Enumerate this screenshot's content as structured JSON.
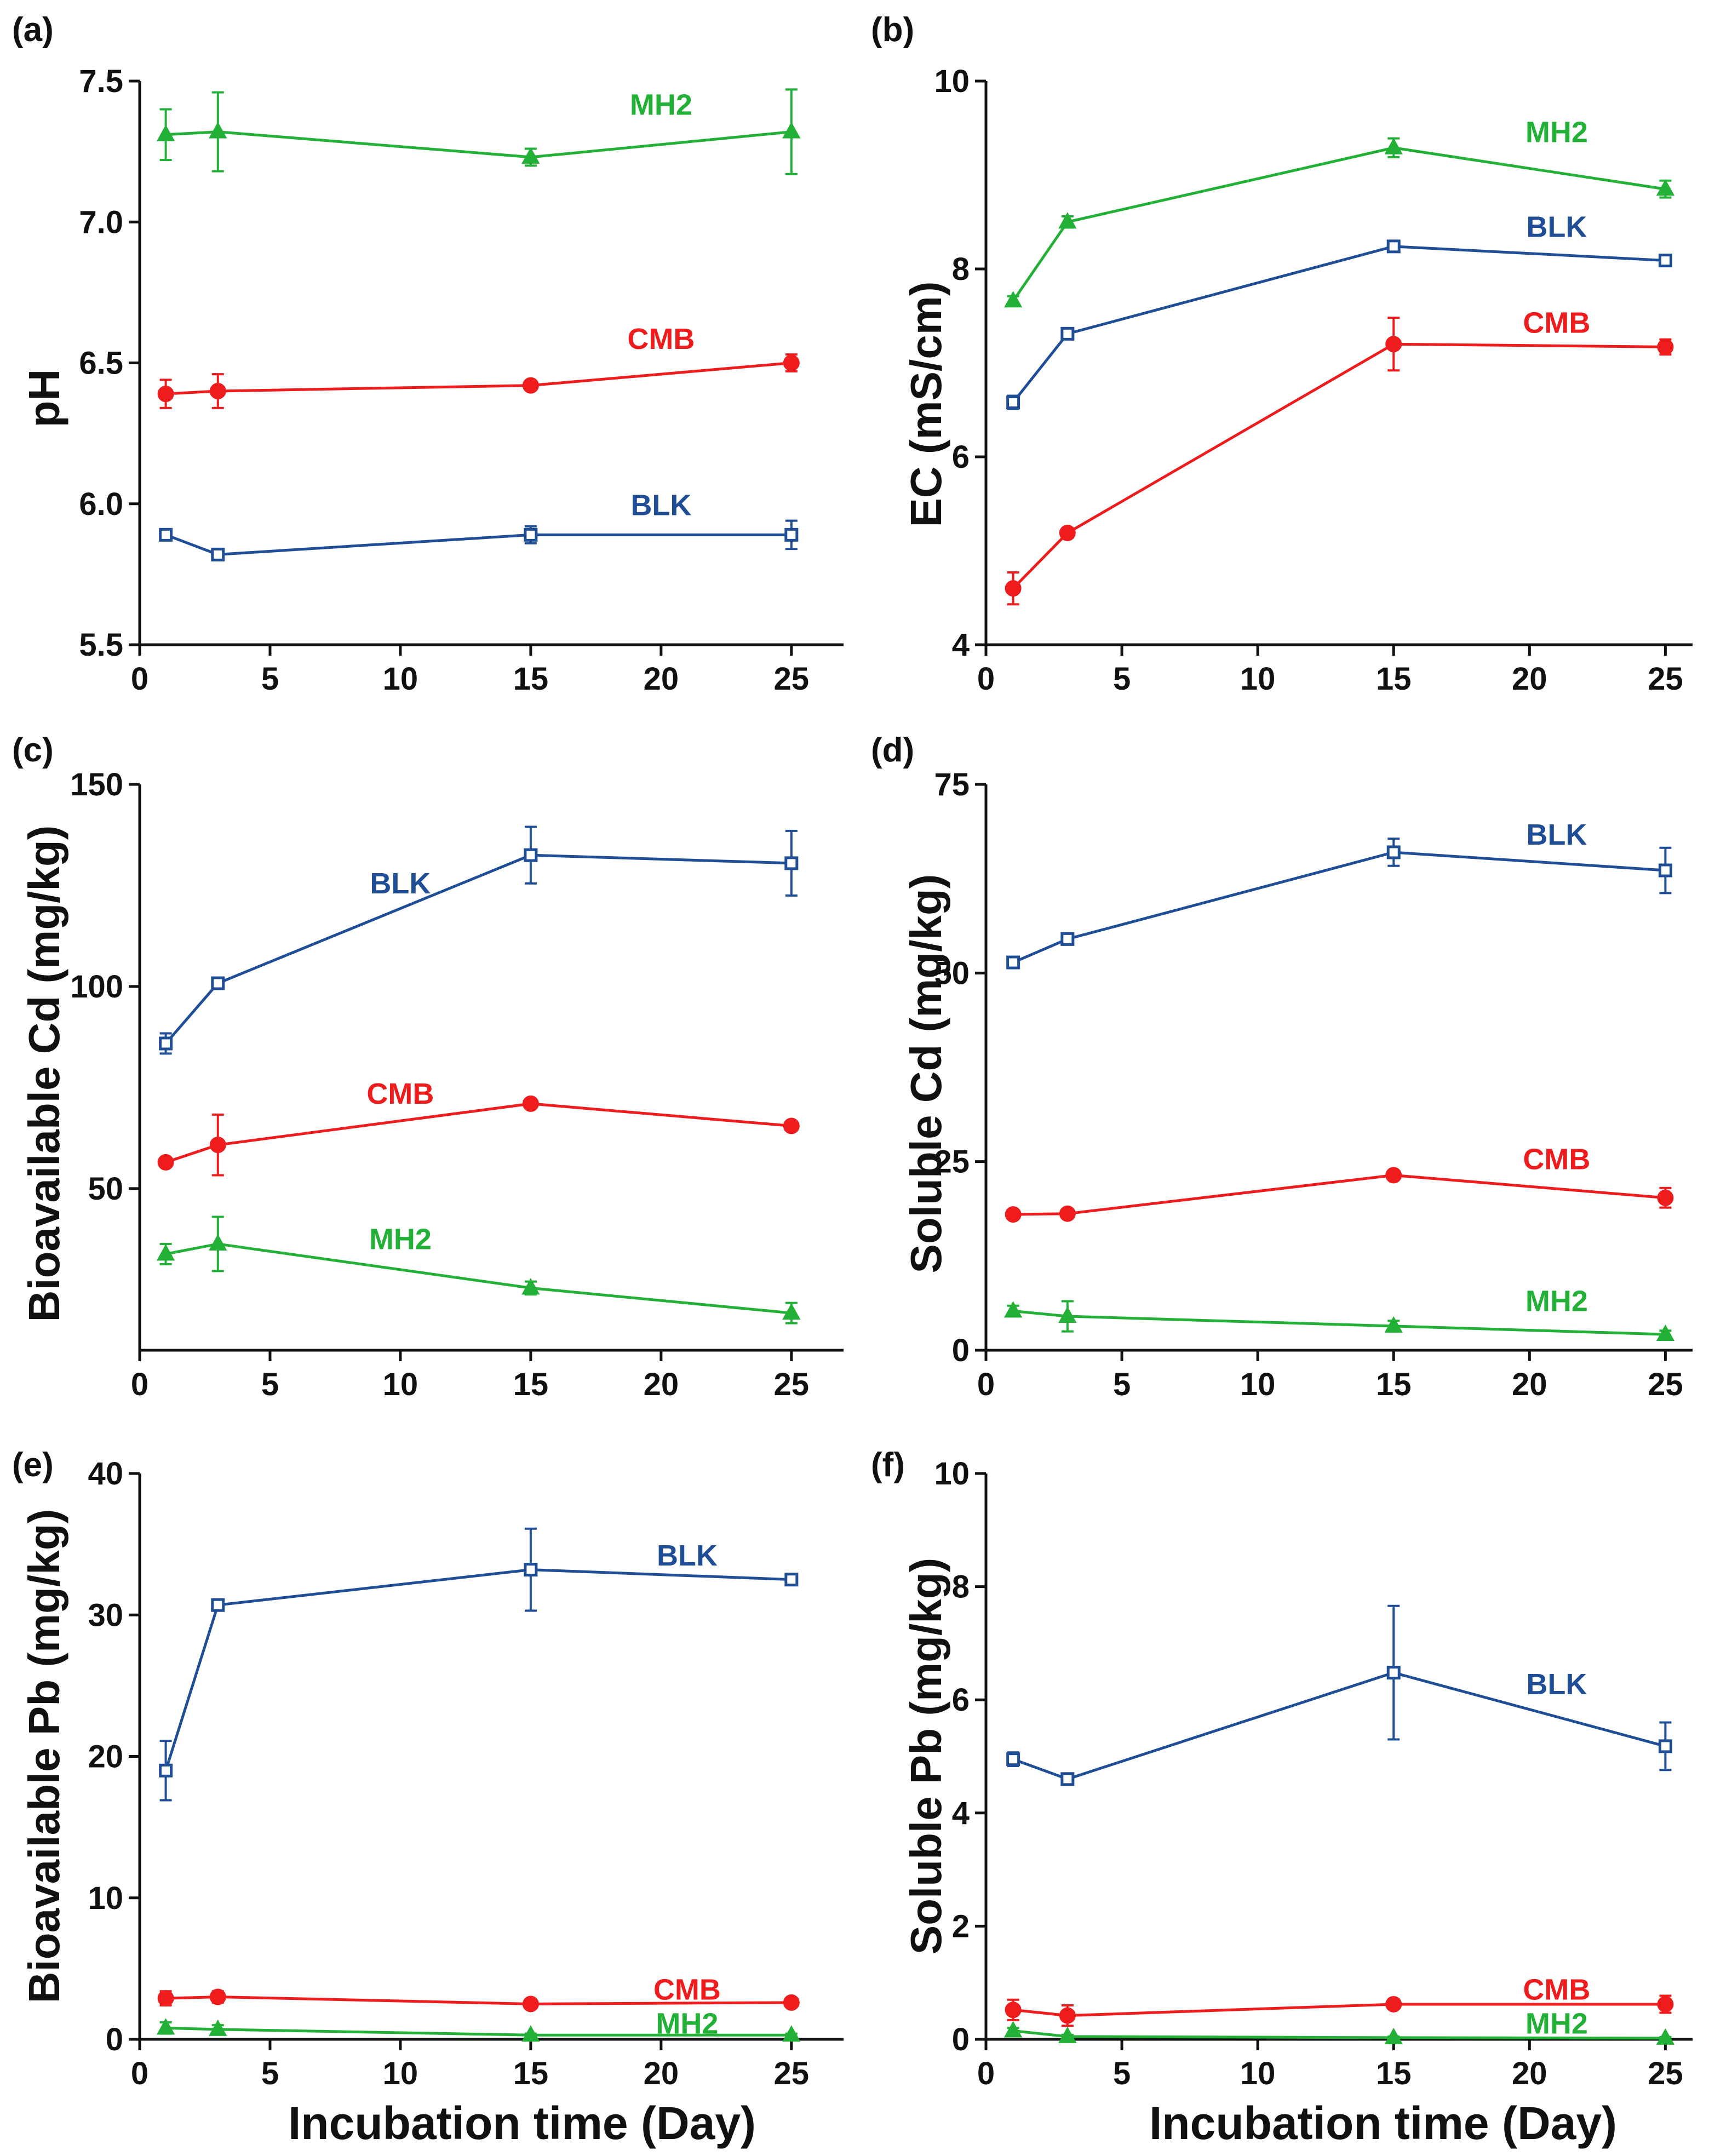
{
  "colors": {
    "BLK": "#1f4e96",
    "CMB": "#ee1c1c",
    "MH2": "#22b136",
    "axis": "#111111"
  },
  "chart_data": [
    {
      "panel": "(a)",
      "type": "line",
      "title": "",
      "ylabel": "pH",
      "xlabel": "",
      "xlim": [
        0,
        27
      ],
      "ylim": [
        5.5,
        7.5
      ],
      "xticks": [
        0,
        5,
        10,
        15,
        20,
        25
      ],
      "yticks": [
        5.5,
        6.0,
        6.5,
        7.0,
        7.5
      ],
      "xtick_labels": [
        "0",
        "5",
        "10",
        "15",
        "20",
        "25"
      ],
      "ytick_labels": [
        "5.5",
        "6.0",
        "6.5",
        "7.0",
        "7.5"
      ],
      "x": [
        1,
        3,
        15,
        25
      ],
      "series": [
        {
          "name": "MH2",
          "values": [
            7.31,
            7.32,
            7.23,
            7.32
          ],
          "errors": [
            0.09,
            0.14,
            0.03,
            0.15
          ],
          "label_at": [
            20,
            7.38
          ]
        },
        {
          "name": "CMB",
          "values": [
            6.39,
            6.4,
            6.42,
            6.5
          ],
          "errors": [
            0.05,
            0.06,
            0.01,
            0.03
          ],
          "label_at": [
            20,
            6.55
          ]
        },
        {
          "name": "BLK",
          "values": [
            5.89,
            5.82,
            5.89,
            5.89
          ],
          "errors": [
            0.01,
            0.01,
            0.03,
            0.05
          ],
          "label_at": [
            20,
            5.96
          ]
        }
      ]
    },
    {
      "panel": "(b)",
      "type": "line",
      "title": "",
      "ylabel": "EC (mS/cm)",
      "xlabel": "",
      "xlim": [
        0,
        26
      ],
      "ylim": [
        4,
        10
      ],
      "xticks": [
        0,
        5,
        10,
        15,
        20,
        25
      ],
      "yticks": [
        4,
        6,
        8,
        10
      ],
      "xtick_labels": [
        "0",
        "5",
        "10",
        "15",
        "20",
        "25"
      ],
      "ytick_labels": [
        "4",
        "6",
        "8",
        "10"
      ],
      "x": [
        1,
        3,
        15,
        25
      ],
      "series": [
        {
          "name": "MH2",
          "values": [
            7.66,
            8.5,
            9.29,
            8.85
          ],
          "errors": [
            0.05,
            0.06,
            0.1,
            0.09
          ],
          "label_at": [
            21,
            9.35
          ]
        },
        {
          "name": "BLK",
          "values": [
            6.58,
            7.31,
            8.24,
            8.09
          ],
          "errors": [
            0.07,
            0.05,
            0.05,
            0.04
          ],
          "label_at": [
            21,
            8.34
          ]
        },
        {
          "name": "CMB",
          "values": [
            4.6,
            5.19,
            7.2,
            7.17
          ],
          "errors": [
            0.17,
            0.05,
            0.28,
            0.08
          ],
          "label_at": [
            21,
            7.32
          ]
        }
      ]
    },
    {
      "panel": "(c)",
      "type": "line",
      "title": "",
      "ylabel": "Bioavailable Cd (mg/kg)",
      "xlabel": "",
      "xlim": [
        0,
        27
      ],
      "ylim": [
        10,
        150
      ],
      "xticks": [
        0,
        5,
        10,
        15,
        20,
        25
      ],
      "yticks": [
        50,
        100,
        150
      ],
      "xtick_labels": [
        "0",
        "5",
        "10",
        "15",
        "20",
        "25"
      ],
      "ytick_labels": [
        "50",
        "100",
        "150"
      ],
      "x": [
        1,
        3,
        15,
        25
      ],
      "series": [
        {
          "name": "BLK",
          "values": [
            85.9,
            100.8,
            132.5,
            130.5
          ],
          "errors": [
            2.5,
            0.8,
            7.0,
            8.0
          ],
          "label_at": [
            10,
            123
          ]
        },
        {
          "name": "CMB",
          "values": [
            56.5,
            60.8,
            71.0,
            65.5
          ],
          "errors": [
            0.8,
            7.5,
            1.0,
            0.8
          ],
          "label_at": [
            10,
            71
          ]
        },
        {
          "name": "MH2",
          "values": [
            33.8,
            36.3,
            25.4,
            19.2
          ],
          "errors": [
            2.5,
            6.7,
            1.6,
            2.5
          ],
          "label_at": [
            10,
            35
          ]
        }
      ]
    },
    {
      "panel": "(d)",
      "type": "line",
      "title": "",
      "ylabel": "Soluble Cd (mg/kg)",
      "xlabel": "",
      "xlim": [
        0,
        26
      ],
      "ylim": [
        0,
        75
      ],
      "xticks": [
        0,
        5,
        10,
        15,
        20,
        25
      ],
      "yticks": [
        0,
        25,
        50,
        75
      ],
      "xtick_labels": [
        "0",
        "5",
        "10",
        "15",
        "20",
        "25"
      ],
      "ytick_labels": [
        "0",
        "25",
        "50",
        "75"
      ],
      "x": [
        1,
        3,
        15,
        25
      ],
      "series": [
        {
          "name": "BLK",
          "values": [
            51.4,
            54.5,
            66.0,
            63.6
          ],
          "errors": [
            0.5,
            0.5,
            1.8,
            3.0
          ],
          "label_at": [
            21,
            67
          ]
        },
        {
          "name": "CMB",
          "values": [
            18.0,
            18.1,
            23.2,
            20.2
          ],
          "errors": [
            0.5,
            0.5,
            0.6,
            1.3
          ],
          "label_at": [
            21,
            24
          ]
        },
        {
          "name": "MH2",
          "values": [
            5.2,
            4.5,
            3.2,
            2.1
          ],
          "errors": [
            0.7,
            2.0,
            0.7,
            0.5
          ],
          "label_at": [
            21,
            5.2
          ]
        }
      ]
    },
    {
      "panel": "(e)",
      "type": "line",
      "title": "",
      "ylabel": "Bioavailable Pb (mg/kg)",
      "xlabel": "Incubation time (Day)",
      "xlim": [
        0,
        27
      ],
      "ylim": [
        0,
        40
      ],
      "xticks": [
        0,
        5,
        10,
        15,
        20,
        25
      ],
      "yticks": [
        0,
        10,
        20,
        30,
        40
      ],
      "xtick_labels": [
        "0",
        "5",
        "10",
        "15",
        "20",
        "25"
      ],
      "ytick_labels": [
        "0",
        "10",
        "20",
        "30",
        "40"
      ],
      "x": [
        1,
        3,
        15,
        25
      ],
      "series": [
        {
          "name": "BLK",
          "values": [
            19.0,
            30.7,
            33.2,
            32.5
          ],
          "errors": [
            2.1,
            0.3,
            2.9,
            0.3
          ],
          "label_at": [
            21,
            33.5
          ]
        },
        {
          "name": "CMB",
          "values": [
            2.9,
            3.0,
            2.5,
            2.6
          ],
          "errors": [
            0.5,
            0.4,
            0.2,
            0.3
          ],
          "label_at": [
            21,
            2.8
          ]
        },
        {
          "name": "MH2",
          "values": [
            0.8,
            0.7,
            0.3,
            0.3
          ],
          "errors": [
            0.4,
            0.3,
            0.1,
            0.1
          ],
          "label_at": [
            21,
            0.4
          ]
        }
      ]
    },
    {
      "panel": "(f)",
      "type": "line",
      "title": "",
      "ylabel": "Soluble Pb (mg/kg)",
      "xlabel": "Incubation time (Day)",
      "xlim": [
        0,
        26
      ],
      "ylim": [
        0,
        10
      ],
      "xticks": [
        0,
        5,
        10,
        15,
        20,
        25
      ],
      "yticks": [
        0,
        2,
        4,
        6,
        8,
        10
      ],
      "xtick_labels": [
        "0",
        "5",
        "10",
        "15",
        "20",
        "25"
      ],
      "ytick_labels": [
        "0",
        "2",
        "4",
        "6",
        "8",
        "10"
      ],
      "x": [
        1,
        3,
        15,
        25
      ],
      "series": [
        {
          "name": "BLK",
          "values": [
            4.95,
            4.6,
            6.48,
            5.18
          ],
          "errors": [
            0.12,
            0.08,
            1.18,
            0.42
          ],
          "label_at": [
            21,
            6.1
          ]
        },
        {
          "name": "CMB",
          "values": [
            0.52,
            0.42,
            0.62,
            0.62
          ],
          "errors": [
            0.18,
            0.18,
            0.05,
            0.15
          ],
          "label_at": [
            21,
            0.7
          ]
        },
        {
          "name": "MH2",
          "values": [
            0.15,
            0.05,
            0.03,
            0.02
          ],
          "errors": [
            0.05,
            0.03,
            0.02,
            0.02
          ],
          "label_at": [
            21,
            0.1
          ]
        }
      ]
    }
  ]
}
